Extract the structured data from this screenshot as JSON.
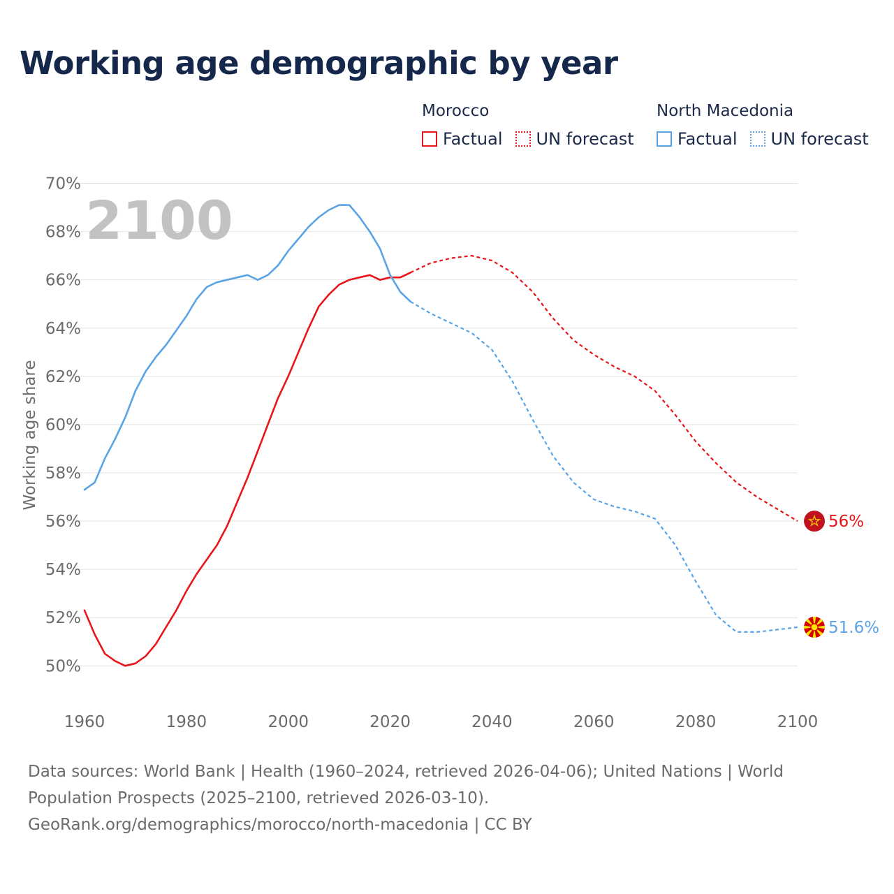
{
  "title": "Working age demographic by year",
  "legend": {
    "groups": [
      {
        "country": "Morocco",
        "color": "#e8161b",
        "items": [
          {
            "label": "Factual",
            "style": "solid"
          },
          {
            "label": "UN forecast",
            "style": "dotted"
          }
        ]
      },
      {
        "country": "North Macedonia",
        "color": "#5aa4e6",
        "items": [
          {
            "label": "Factual",
            "style": "solid"
          },
          {
            "label": "UN forecast",
            "style": "dotted"
          }
        ]
      }
    ]
  },
  "chart_data": {
    "type": "line",
    "title": "Working age demographic by year",
    "xlabel": "",
    "ylabel": "Working age share",
    "xlim": [
      1960,
      2100
    ],
    "ylim": [
      48.3,
      71
    ],
    "xticks": [
      1960,
      1980,
      2000,
      2020,
      2040,
      2060,
      2080,
      2100
    ],
    "yticks": [
      50,
      52,
      54,
      56,
      58,
      60,
      62,
      64,
      66,
      68,
      70
    ],
    "ytick_labels": [
      "50%",
      "52%",
      "54%",
      "56%",
      "58%",
      "60%",
      "62%",
      "64%",
      "66%",
      "68%",
      "70%"
    ],
    "grid": "horizontal",
    "year_label": "2100",
    "series": [
      {
        "name": "Morocco",
        "color": "#e8161b",
        "end_label": "56%",
        "flag": "Morocco flag",
        "factual": {
          "x": [
            1960,
            1962,
            1964,
            1966,
            1968,
            1970,
            1972,
            1974,
            1976,
            1978,
            1980,
            1982,
            1984,
            1986,
            1988,
            1990,
            1992,
            1994,
            1996,
            1998,
            2000,
            2002,
            2004,
            2006,
            2008,
            2010,
            2012,
            2014,
            2016,
            2018,
            2020,
            2022,
            2024
          ],
          "y": [
            52.3,
            51.3,
            50.5,
            50.2,
            50.0,
            50.1,
            50.4,
            50.9,
            51.6,
            52.3,
            53.1,
            53.8,
            54.4,
            55.0,
            55.8,
            56.8,
            57.8,
            58.9,
            60.0,
            61.1,
            62.0,
            63.0,
            64.0,
            64.9,
            65.4,
            65.8,
            66.0,
            66.1,
            66.2,
            66.0,
            66.1,
            66.1,
            66.3
          ]
        },
        "forecast": {
          "x": [
            2024,
            2028,
            2032,
            2036,
            2040,
            2044,
            2048,
            2052,
            2056,
            2060,
            2064,
            2068,
            2072,
            2076,
            2080,
            2084,
            2088,
            2092,
            2096,
            2100
          ],
          "y": [
            66.3,
            66.7,
            66.9,
            67.0,
            66.8,
            66.3,
            65.5,
            64.4,
            63.5,
            62.9,
            62.4,
            62.0,
            61.4,
            60.4,
            59.3,
            58.4,
            57.6,
            57.0,
            56.5,
            56.0
          ]
        }
      },
      {
        "name": "North Macedonia",
        "color": "#5aa4e6",
        "end_label": "51.6%",
        "flag": "North Macedonia flag",
        "factual": {
          "x": [
            1960,
            1962,
            1964,
            1966,
            1968,
            1970,
            1972,
            1974,
            1976,
            1978,
            1980,
            1982,
            1984,
            1986,
            1988,
            1990,
            1992,
            1994,
            1996,
            1998,
            2000,
            2002,
            2004,
            2006,
            2008,
            2010,
            2012,
            2014,
            2016,
            2018,
            2020,
            2022,
            2024
          ],
          "y": [
            57.3,
            57.6,
            58.6,
            59.4,
            60.3,
            61.4,
            62.2,
            62.8,
            63.3,
            63.9,
            64.5,
            65.2,
            65.7,
            65.9,
            66.0,
            66.1,
            66.2,
            66.0,
            66.2,
            66.6,
            67.2,
            67.7,
            68.2,
            68.6,
            68.9,
            69.1,
            69.1,
            68.6,
            68.0,
            67.3,
            66.2,
            65.5,
            65.1
          ]
        },
        "forecast": {
          "x": [
            2024,
            2028,
            2032,
            2036,
            2040,
            2044,
            2048,
            2052,
            2056,
            2060,
            2064,
            2068,
            2072,
            2076,
            2080,
            2084,
            2088,
            2092,
            2096,
            2100
          ],
          "y": [
            65.1,
            64.6,
            64.2,
            63.8,
            63.1,
            61.8,
            60.2,
            58.7,
            57.6,
            56.9,
            56.6,
            56.4,
            56.1,
            55.0,
            53.5,
            52.1,
            51.4,
            51.4,
            51.5,
            51.6
          ]
        }
      }
    ]
  },
  "footer": {
    "line1": "Data sources: World Bank | Health (1960–2024, retrieved 2026-04-06); United Nations | World",
    "line2": "Population Prospects (2025–2100, retrieved 2026-03-10).",
    "line3": "GeoRank.org/demographics/morocco/north-macedonia | CC BY"
  }
}
